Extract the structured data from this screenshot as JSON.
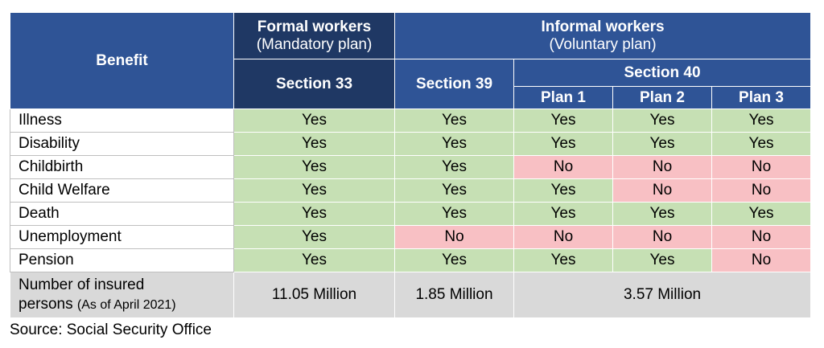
{
  "header": {
    "benefit": "Benefit",
    "formal_title": "Formal workers",
    "formal_sub": "(Mandatory plan)",
    "informal_title": "Informal workers",
    "informal_sub": "(Voluntary plan)",
    "section33": "Section 33",
    "section39": "Section 39",
    "section40": "Section 40",
    "plan1": "Plan 1",
    "plan2": "Plan 2",
    "plan3": "Plan 3"
  },
  "rows": [
    {
      "label": "Illness",
      "values": [
        "Yes",
        "Yes",
        "Yes",
        "Yes",
        "Yes"
      ]
    },
    {
      "label": "Disability",
      "values": [
        "Yes",
        "Yes",
        "Yes",
        "Yes",
        "Yes"
      ]
    },
    {
      "label": "Childbirth",
      "values": [
        "Yes",
        "Yes",
        "No",
        "No",
        "No"
      ]
    },
    {
      "label": "Child Welfare",
      "values": [
        "Yes",
        "Yes",
        "Yes",
        "No",
        "No"
      ]
    },
    {
      "label": "Death",
      "values": [
        "Yes",
        "Yes",
        "Yes",
        "Yes",
        "Yes"
      ]
    },
    {
      "label": "Unemployment",
      "values": [
        "Yes",
        "No",
        "No",
        "No",
        "No"
      ]
    },
    {
      "label": "Pension",
      "values": [
        "Yes",
        "Yes",
        "Yes",
        "Yes",
        "No"
      ]
    }
  ],
  "insured": {
    "label_line1": "Number of insured",
    "label_line2": "persons",
    "label_note": "(As of April 2021)",
    "section33": "11.05 Million",
    "section39": "1.85 Million",
    "section40": "3.57 Million"
  },
  "source": "Source: Social Security Office",
  "colors": {
    "header_blue": "#2f5496",
    "header_dark": "#1f3864",
    "yes_green": "#c6e0b4",
    "no_red": "#f8c0c4",
    "total_grey": "#d9d9d9"
  }
}
